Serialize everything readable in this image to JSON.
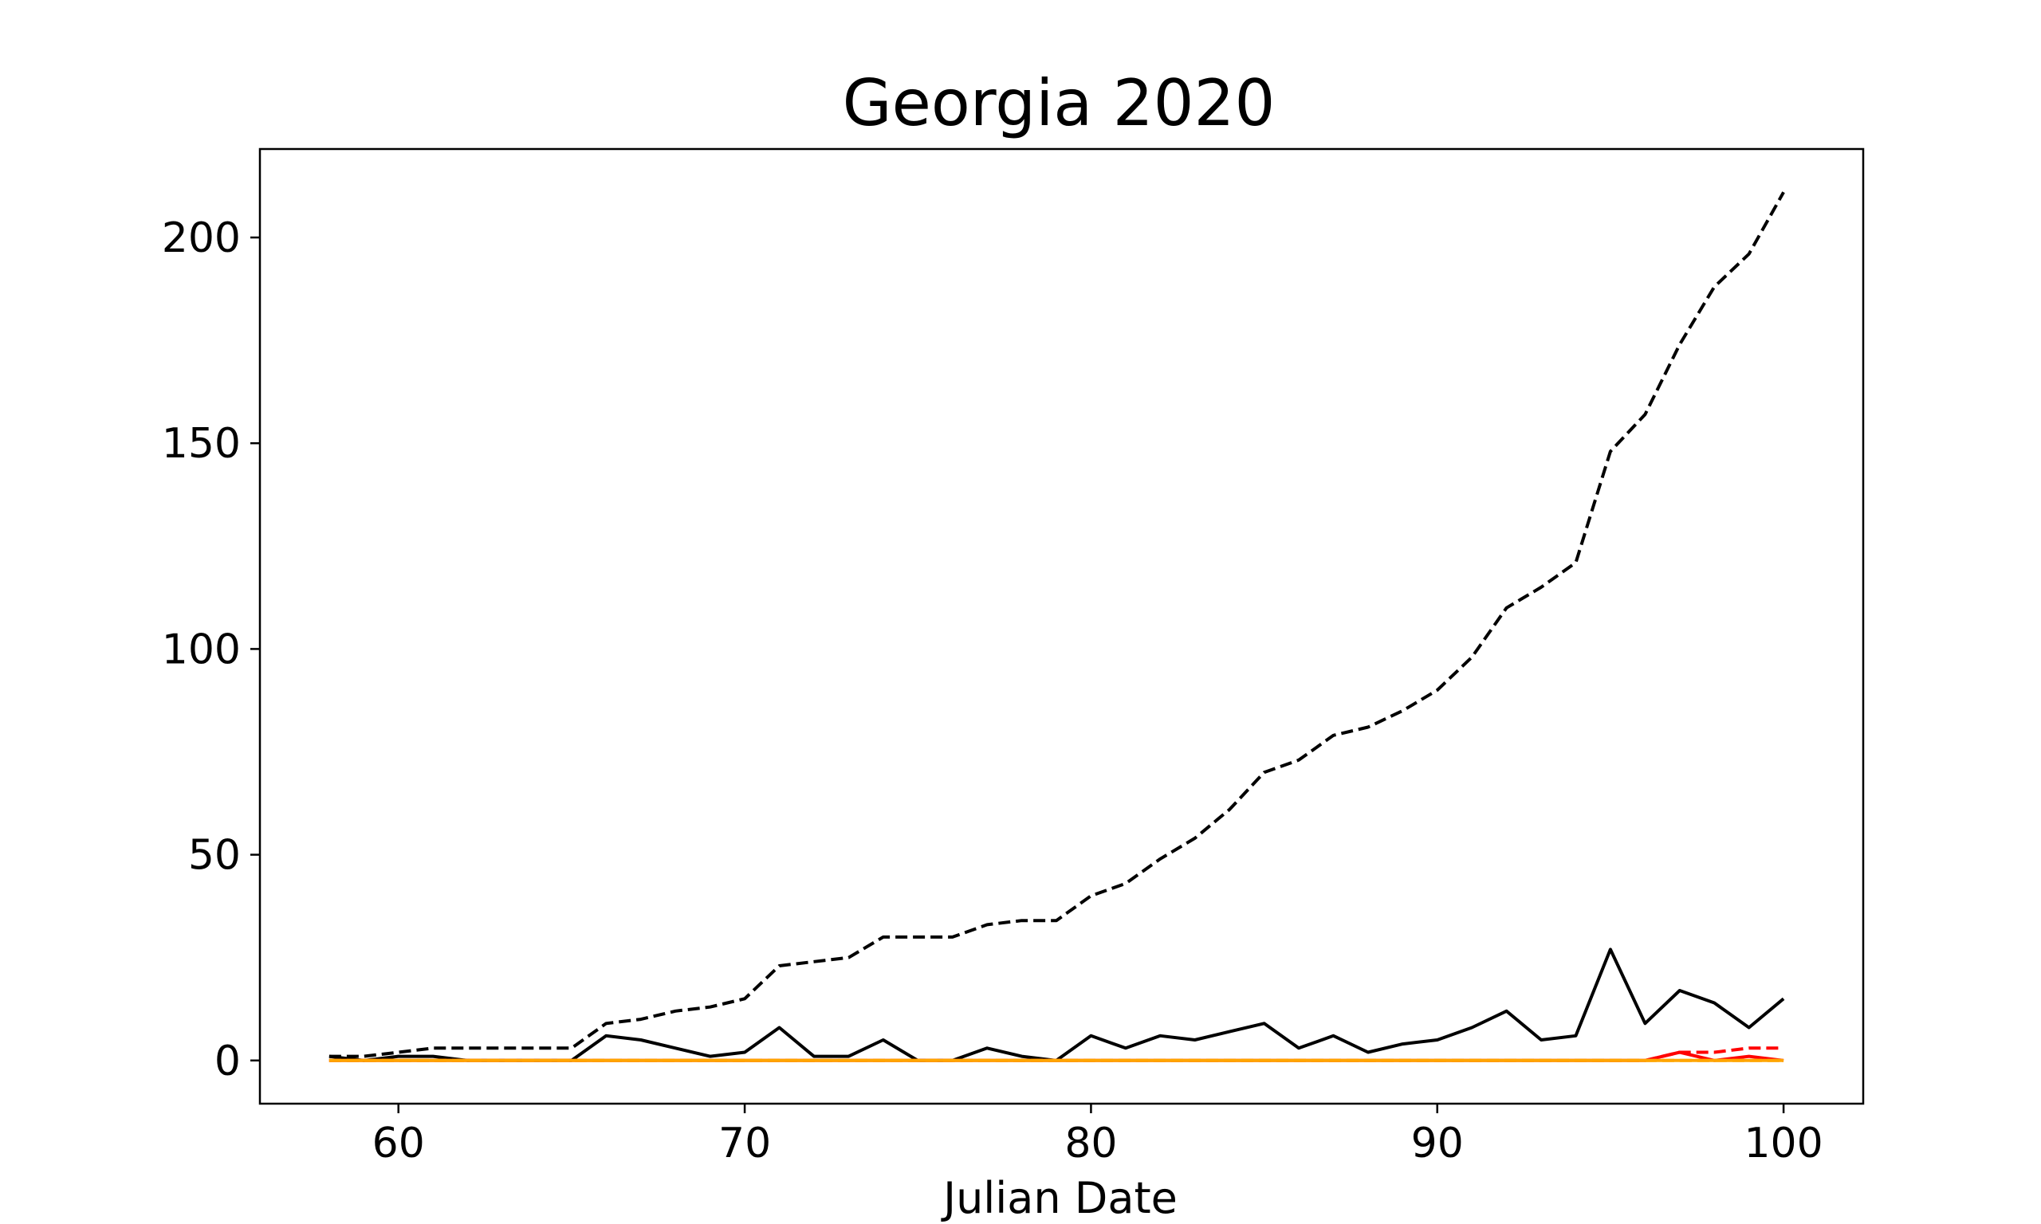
{
  "chart_data": {
    "type": "line",
    "title": "Georgia 2020",
    "xlabel": "Julian Date",
    "ylabel": "",
    "xlim": [
      56,
      102.3
    ],
    "ylim": [
      -10.5,
      221.5
    ],
    "xticks": [
      60,
      70,
      80,
      90,
      100
    ],
    "yticks": [
      0,
      50,
      100,
      150,
      200
    ],
    "grid": false,
    "series": [
      {
        "color": "#000000",
        "style": "dashed",
        "x": [
          58,
          59,
          60,
          61,
          62,
          63,
          64,
          65,
          66,
          67,
          68,
          69,
          70,
          71,
          72,
          73,
          74,
          75,
          76,
          77,
          78,
          79,
          80,
          81,
          82,
          83,
          84,
          85,
          86,
          87,
          88,
          89,
          90,
          91,
          92,
          93,
          94,
          95,
          96,
          97,
          98,
          99,
          100
        ],
        "values": [
          1,
          1,
          2,
          3,
          3,
          3,
          3,
          3,
          9,
          10,
          12,
          13,
          15,
          23,
          24,
          25,
          30,
          30,
          30,
          33,
          34,
          34,
          40,
          43,
          49,
          54,
          61,
          70,
          73,
          79,
          81,
          85,
          90,
          98,
          110,
          115,
          121,
          148,
          157,
          174,
          188,
          196,
          211
        ]
      },
      {
        "color": "#000000",
        "style": "solid",
        "x": [
          58,
          59,
          60,
          61,
          62,
          63,
          64,
          65,
          66,
          67,
          68,
          69,
          70,
          71,
          72,
          73,
          74,
          75,
          76,
          77,
          78,
          79,
          80,
          81,
          82,
          83,
          84,
          85,
          86,
          87,
          88,
          89,
          90,
          91,
          92,
          93,
          94,
          95,
          96,
          97,
          98,
          99,
          100
        ],
        "values": [
          1,
          0,
          1,
          1,
          0,
          0,
          0,
          0,
          6,
          5,
          3,
          1,
          2,
          8,
          1,
          1,
          5,
          0,
          0,
          3,
          1,
          0,
          6,
          3,
          6,
          5,
          7,
          9,
          3,
          6,
          2,
          4,
          5,
          8,
          12,
          5,
          6,
          27,
          9,
          17,
          14,
          8,
          15
        ]
      },
      {
        "color": "#ff0000",
        "style": "dashed",
        "x": [
          58,
          96,
          97,
          98,
          99,
          100
        ],
        "values": [
          0,
          0,
          2,
          2,
          3,
          3
        ]
      },
      {
        "color": "#ff0000",
        "style": "solid",
        "x": [
          58,
          96,
          97,
          98,
          99,
          100
        ],
        "values": [
          0,
          0,
          2,
          0,
          1,
          0
        ]
      },
      {
        "color": "#ffa500",
        "style": "dashed",
        "x": [
          58,
          100
        ],
        "values": [
          0,
          0
        ]
      },
      {
        "color": "#ffa500",
        "style": "solid",
        "x": [
          58,
          100
        ],
        "values": [
          0,
          0
        ]
      }
    ]
  }
}
